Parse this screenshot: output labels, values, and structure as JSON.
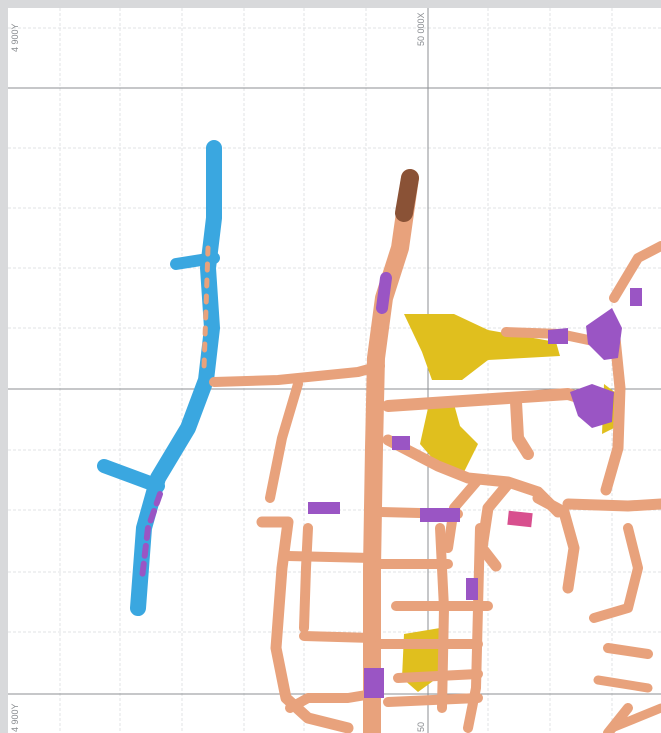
{
  "viewer": {
    "label_top_left": "4 900Y",
    "label_bottom_left": "4 900Y",
    "label_top_center": "50 000X",
    "label_bottom_center": "50"
  },
  "colors": {
    "background": "#d8d9db",
    "drift": "#e8a27c",
    "drift_dark": "#b5704f",
    "orebody_blue": "#3aa7e0",
    "stope_purple": "#9a55c4",
    "ore_yellow": "#e0bf1e",
    "highlight_pink": "#d84f8e"
  }
}
